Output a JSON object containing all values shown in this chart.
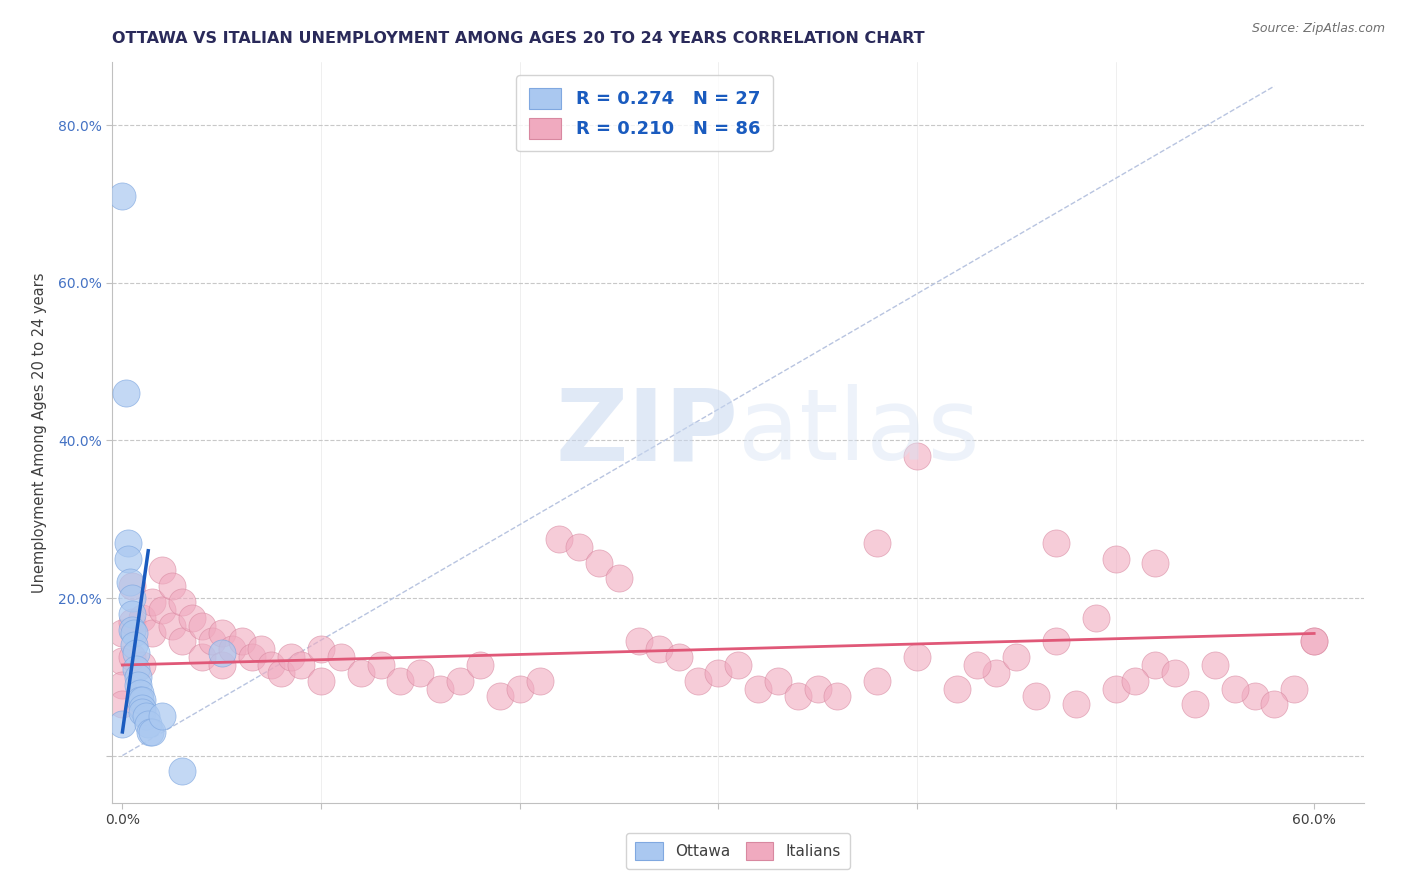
{
  "title": "OTTAWA VS ITALIAN UNEMPLOYMENT AMONG AGES 20 TO 24 YEARS CORRELATION CHART",
  "source": "Source: ZipAtlas.com",
  "ylabel": "Unemployment Among Ages 20 to 24 years",
  "xlim": [
    -0.005,
    0.625
  ],
  "ylim": [
    -0.06,
    0.88
  ],
  "xticks": [
    0.0,
    0.1,
    0.2,
    0.3,
    0.4,
    0.5,
    0.6
  ],
  "xticklabels": [
    "0.0%",
    "",
    "",
    "",
    "",
    "",
    "60.0%"
  ],
  "yticks": [
    0.0,
    0.2,
    0.4,
    0.6,
    0.8
  ],
  "yticklabels": [
    "",
    "20.0%",
    "40.0%",
    "60.0%",
    "80.0%"
  ],
  "ottawa_R": "0.274",
  "ottawa_N": "27",
  "italian_R": "0.210",
  "italian_N": "86",
  "ottawa_color": "#aac8f0",
  "ottawa_edge_color": "#80a8e0",
  "italian_color": "#f0aabf",
  "italian_edge_color": "#d888a0",
  "ottawa_line_color": "#1a5bbf",
  "italian_line_color": "#e05878",
  "diagonal_color": "#b8c4e0",
  "grid_color": "#c8c8c8",
  "watermark_zip": "ZIP",
  "watermark_atlas": "atlas",
  "title_color": "#2a2a5a",
  "legend_r_color": "#1a5bbf",
  "legend_n_color": "#1a5bbf",
  "legend_n2_color": "#e05878",
  "ottawa_x": [
    0.0,
    0.0,
    0.002,
    0.003,
    0.003,
    0.004,
    0.005,
    0.005,
    0.005,
    0.006,
    0.006,
    0.007,
    0.007,
    0.008,
    0.008,
    0.009,
    0.009,
    0.01,
    0.01,
    0.01,
    0.012,
    0.013,
    0.014,
    0.015,
    0.02,
    0.03,
    0.05
  ],
  "ottawa_y": [
    0.71,
    0.04,
    0.46,
    0.27,
    0.25,
    0.22,
    0.2,
    0.18,
    0.16,
    0.155,
    0.14,
    0.13,
    0.11,
    0.1,
    0.09,
    0.08,
    0.07,
    0.07,
    0.06,
    0.055,
    0.05,
    0.04,
    0.03,
    0.03,
    0.05,
    -0.02,
    0.13
  ],
  "italian_x": [
    0.0,
    0.0,
    0.0,
    0.0,
    0.005,
    0.005,
    0.005,
    0.01,
    0.01,
    0.015,
    0.015,
    0.02,
    0.02,
    0.025,
    0.025,
    0.03,
    0.03,
    0.035,
    0.04,
    0.04,
    0.045,
    0.05,
    0.05,
    0.055,
    0.06,
    0.065,
    0.07,
    0.075,
    0.08,
    0.085,
    0.09,
    0.1,
    0.1,
    0.11,
    0.12,
    0.13,
    0.14,
    0.15,
    0.16,
    0.17,
    0.18,
    0.19,
    0.2,
    0.21,
    0.22,
    0.23,
    0.24,
    0.25,
    0.26,
    0.27,
    0.28,
    0.29,
    0.3,
    0.31,
    0.32,
    0.33,
    0.34,
    0.35,
    0.36,
    0.38,
    0.4,
    0.42,
    0.44,
    0.46,
    0.47,
    0.48,
    0.5,
    0.52,
    0.54,
    0.38,
    0.4,
    0.43,
    0.45,
    0.49,
    0.51,
    0.53,
    0.55,
    0.57,
    0.59,
    0.6,
    0.52,
    0.56,
    0.58,
    0.6,
    0.5,
    0.47
  ],
  "italian_y": [
    0.155,
    0.12,
    0.09,
    0.065,
    0.215,
    0.17,
    0.125,
    0.175,
    0.115,
    0.195,
    0.155,
    0.235,
    0.185,
    0.215,
    0.165,
    0.195,
    0.145,
    0.175,
    0.165,
    0.125,
    0.145,
    0.155,
    0.115,
    0.135,
    0.145,
    0.125,
    0.135,
    0.115,
    0.105,
    0.125,
    0.115,
    0.135,
    0.095,
    0.125,
    0.105,
    0.115,
    0.095,
    0.105,
    0.085,
    0.095,
    0.115,
    0.075,
    0.085,
    0.095,
    0.275,
    0.265,
    0.245,
    0.225,
    0.145,
    0.135,
    0.125,
    0.095,
    0.105,
    0.115,
    0.085,
    0.095,
    0.075,
    0.085,
    0.075,
    0.095,
    0.38,
    0.085,
    0.105,
    0.075,
    0.145,
    0.065,
    0.085,
    0.115,
    0.065,
    0.27,
    0.125,
    0.115,
    0.125,
    0.175,
    0.095,
    0.105,
    0.115,
    0.075,
    0.085,
    0.145,
    0.245,
    0.085,
    0.065,
    0.145,
    0.25,
    0.27
  ]
}
